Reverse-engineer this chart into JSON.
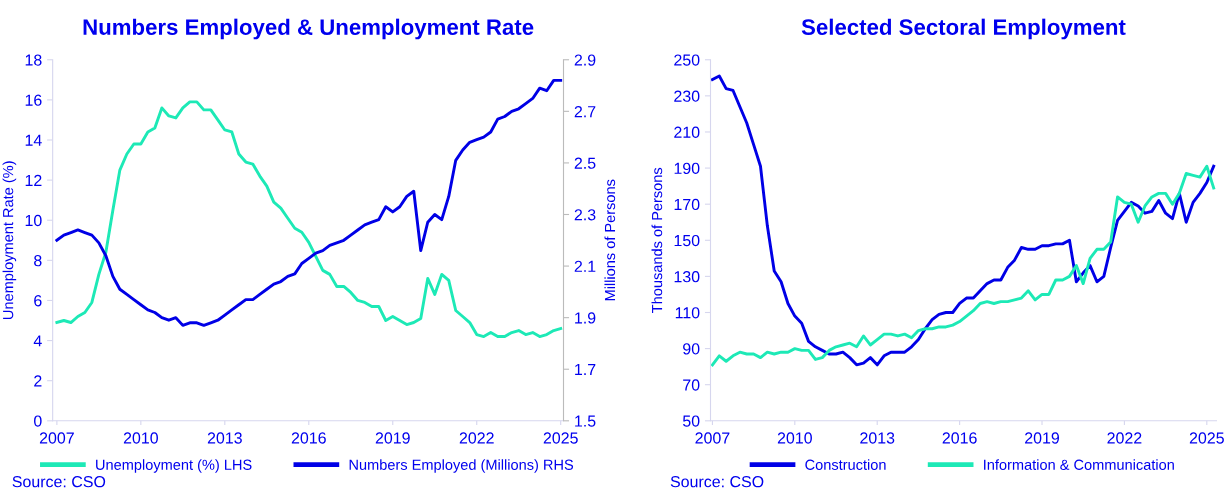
{
  "chart_data": [
    {
      "type": "line",
      "title": "Numbers Employed & Unemployment Rate",
      "ylabel": "Unemployment Rate (%)",
      "y2label": "Millions of Persons",
      "xlim": [
        2006.85,
        2025.1
      ],
      "xticks": [
        2007,
        2010,
        2013,
        2016,
        2019,
        2022,
        2025
      ],
      "ylim": [
        0,
        18
      ],
      "yticks": [
        0,
        2,
        4,
        6,
        8,
        10,
        12,
        14,
        16,
        18
      ],
      "y2lim": [
        1.5,
        2.9
      ],
      "y2ticks": [
        1.5,
        1.7,
        1.9,
        2.1,
        2.3,
        2.5,
        2.7,
        2.9
      ],
      "grid": false,
      "legend": "bottom",
      "marker": "none",
      "line_style": "solid",
      "x": [
        2007,
        2007.25,
        2007.5,
        2007.75,
        2008,
        2008.25,
        2008.5,
        2008.75,
        2009,
        2009.25,
        2009.5,
        2009.75,
        2010,
        2010.25,
        2010.5,
        2010.75,
        2011,
        2011.25,
        2011.5,
        2011.75,
        2012,
        2012.25,
        2012.5,
        2012.75,
        2013,
        2013.25,
        2013.5,
        2013.75,
        2014,
        2014.25,
        2014.5,
        2014.75,
        2015,
        2015.25,
        2015.5,
        2015.75,
        2016,
        2016.25,
        2016.5,
        2016.75,
        2017,
        2017.25,
        2017.5,
        2017.75,
        2018,
        2018.25,
        2018.5,
        2018.75,
        2019,
        2019.25,
        2019.5,
        2019.75,
        2020,
        2020.25,
        2020.5,
        2020.75,
        2021,
        2021.25,
        2021.5,
        2021.75,
        2022,
        2022.25,
        2022.5,
        2022.75,
        2023,
        2023.25,
        2023.5,
        2023.75,
        2024,
        2024.25,
        2024.5,
        2024.75,
        2025
      ],
      "series": [
        {
          "name": "Unemployment (%) LHS",
          "color": "#1de9b6",
          "values": [
            4.9,
            5.0,
            4.9,
            5.2,
            5.4,
            5.9,
            7.3,
            8.4,
            10.5,
            12.5,
            13.3,
            13.8,
            13.8,
            14.4,
            14.6,
            15.6,
            15.2,
            15.1,
            15.6,
            15.9,
            15.9,
            15.5,
            15.5,
            15.0,
            14.5,
            14.4,
            13.3,
            12.9,
            12.8,
            12.2,
            11.7,
            10.9,
            10.6,
            10.1,
            9.6,
            9.4,
            8.9,
            8.2,
            7.5,
            7.3,
            6.7,
            6.7,
            6.4,
            6.0,
            5.9,
            5.7,
            5.7,
            5.0,
            5.2,
            5.0,
            4.8,
            4.9,
            5.1,
            7.1,
            6.3,
            7.3,
            7.0,
            5.5,
            5.2,
            4.9,
            4.3,
            4.2,
            4.4,
            4.2,
            4.2,
            4.4,
            4.5,
            4.3,
            4.4,
            4.2,
            4.3,
            4.5,
            4.6
          ]
        },
        {
          "name": "Numbers Employed (Millions) RHS",
          "color": "#0000e6",
          "axis": "y2",
          "values": [
            2.2,
            2.22,
            2.23,
            2.24,
            2.23,
            2.22,
            2.19,
            2.14,
            2.06,
            2.01,
            1.99,
            1.97,
            1.95,
            1.93,
            1.92,
            1.9,
            1.89,
            1.9,
            1.87,
            1.88,
            1.88,
            1.87,
            1.88,
            1.89,
            1.91,
            1.93,
            1.95,
            1.97,
            1.97,
            1.99,
            2.01,
            2.03,
            2.04,
            2.06,
            2.07,
            2.11,
            2.13,
            2.15,
            2.16,
            2.18,
            2.19,
            2.2,
            2.22,
            2.24,
            2.26,
            2.27,
            2.28,
            2.33,
            2.31,
            2.33,
            2.37,
            2.39,
            2.16,
            2.27,
            2.3,
            2.28,
            2.37,
            2.51,
            2.55,
            2.58,
            2.59,
            2.6,
            2.62,
            2.67,
            2.68,
            2.7,
            2.71,
            2.73,
            2.75,
            2.79,
            2.78,
            2.82,
            2.82
          ]
        }
      ],
      "annotations": [
        "Source: CSO"
      ]
    },
    {
      "type": "line",
      "title": "Selected Sectoral Employment",
      "ylabel": "Thousands of Persons",
      "xlim": [
        2006.93,
        2025.35
      ],
      "xticks": [
        2007,
        2010,
        2013,
        2016,
        2019,
        2022,
        2025
      ],
      "ylim": [
        50,
        250
      ],
      "yticks": [
        50,
        70,
        90,
        110,
        130,
        150,
        170,
        190,
        210,
        230,
        250
      ],
      "grid": false,
      "legend": "bottom",
      "marker": "none",
      "line_style": "solid",
      "x": [
        2007,
        2007.25,
        2007.5,
        2007.75,
        2008,
        2008.25,
        2008.5,
        2008.75,
        2009,
        2009.25,
        2009.5,
        2009.75,
        2010,
        2010.25,
        2010.5,
        2010.75,
        2011,
        2011.25,
        2011.5,
        2011.75,
        2012,
        2012.25,
        2012.5,
        2012.75,
        2013,
        2013.25,
        2013.5,
        2013.75,
        2014,
        2014.25,
        2014.5,
        2014.75,
        2015,
        2015.25,
        2015.5,
        2015.75,
        2016,
        2016.25,
        2016.5,
        2016.75,
        2017,
        2017.25,
        2017.5,
        2017.75,
        2018,
        2018.25,
        2018.5,
        2018.75,
        2019,
        2019.25,
        2019.5,
        2019.75,
        2020,
        2020.25,
        2020.5,
        2020.75,
        2021,
        2021.25,
        2021.5,
        2021.75,
        2022,
        2022.25,
        2022.5,
        2022.75,
        2023,
        2023.25,
        2023.5,
        2023.75,
        2024,
        2024.25,
        2024.5,
        2024.75,
        2025,
        2025.25
      ],
      "series": [
        {
          "name": "Construction",
          "color": "#0000e6",
          "values": [
            239,
            241,
            234,
            233,
            224,
            215,
            203,
            191,
            158,
            133,
            127,
            115,
            108,
            104,
            94,
            91,
            89,
            87,
            87,
            88,
            85,
            81,
            82,
            85,
            81,
            86,
            88,
            88,
            88,
            91,
            95,
            101,
            106,
            109,
            110,
            110,
            115,
            118,
            118,
            122,
            126,
            128,
            128,
            135,
            139,
            146,
            145,
            145,
            147,
            147,
            148,
            148,
            150,
            127,
            132,
            136,
            127,
            130,
            146,
            161,
            166,
            171,
            169,
            165,
            166,
            172,
            165,
            162,
            176,
            160,
            171,
            176,
            182,
            191
          ]
        },
        {
          "name": "Information & Communication",
          "color": "#1de9b6",
          "values": [
            81,
            86,
            83,
            86,
            88,
            87,
            87,
            85,
            88,
            87,
            88,
            88,
            90,
            89,
            89,
            84,
            85,
            89,
            91,
            92,
            93,
            91,
            97,
            92,
            95,
            98,
            98,
            97,
            98,
            96,
            100,
            101,
            101,
            102,
            102,
            103,
            105,
            108,
            111,
            115,
            116,
            115,
            116,
            116,
            117,
            118,
            122,
            117,
            120,
            120,
            128,
            128,
            130,
            136,
            126,
            140,
            145,
            145,
            149,
            174,
            171,
            170,
            160,
            169,
            174,
            176,
            176,
            170,
            176,
            187,
            186,
            185,
            191,
            179
          ]
        }
      ],
      "annotations": [
        "Source: CSO"
      ]
    }
  ]
}
